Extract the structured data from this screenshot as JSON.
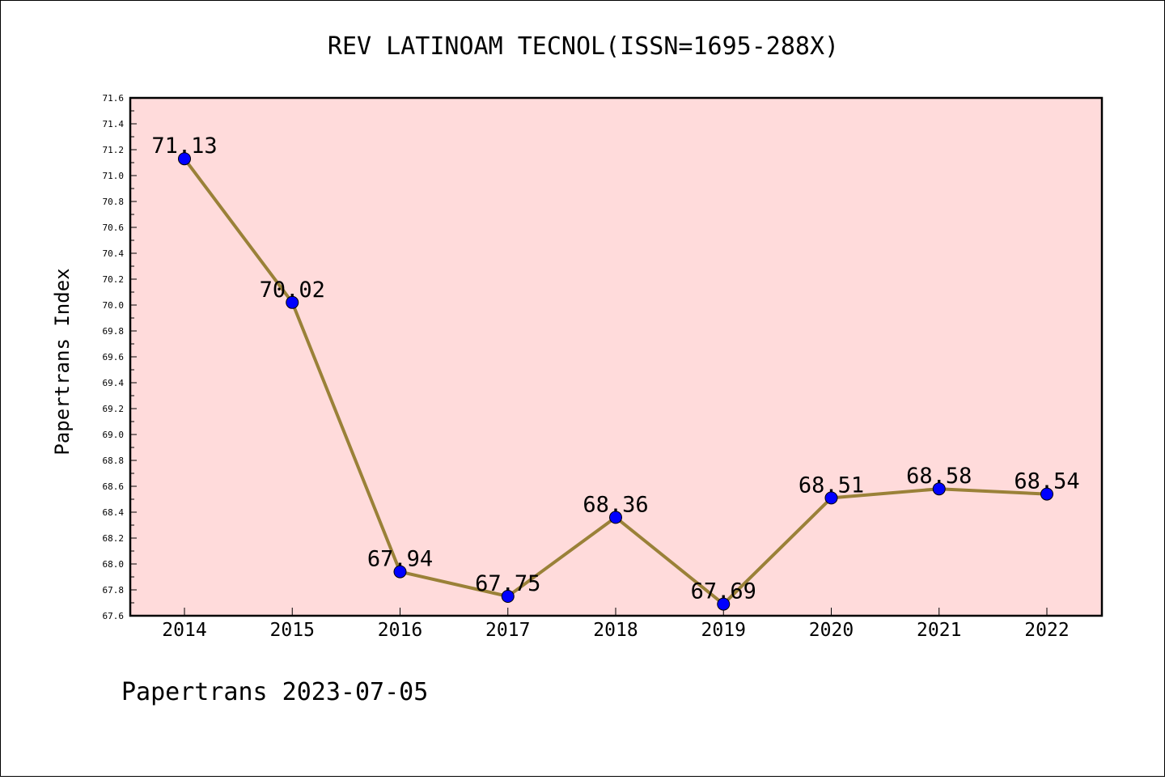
{
  "chart_data": {
    "type": "line",
    "title": "REV LATINOAM TECNOL(ISSN=1695-288X)",
    "xlabel": "",
    "ylabel": "Papertrans Index",
    "categories": [
      "2014",
      "2015",
      "2016",
      "2017",
      "2018",
      "2019",
      "2020",
      "2021",
      "2022"
    ],
    "series": [
      {
        "values": [
          71.13,
          70.02,
          67.94,
          67.75,
          68.36,
          67.69,
          68.51,
          68.58,
          68.54
        ],
        "labels": [
          "71.13",
          "70.02",
          "67.94",
          "67.75",
          "68.36",
          "67.69",
          "68.51",
          "68.58",
          "68.54"
        ]
      }
    ],
    "ylim": [
      67.6,
      71.6
    ],
    "yticks": [
      "67.6",
      "67.8",
      "68.0",
      "68.2",
      "68.4",
      "68.6",
      "68.8",
      "69.0",
      "69.2",
      "69.4",
      "69.6",
      "69.8",
      "70.0",
      "70.2",
      "70.4",
      "70.6",
      "70.8",
      "71.0",
      "71.2",
      "71.4",
      "71.6"
    ],
    "grid": false,
    "legend": "none",
    "colors": {
      "plot_background": "#ffdbdb",
      "line": "#9a8138",
      "marker": "#0000ff"
    }
  },
  "footer": {
    "text": "Papertrans 2023-07-05"
  }
}
